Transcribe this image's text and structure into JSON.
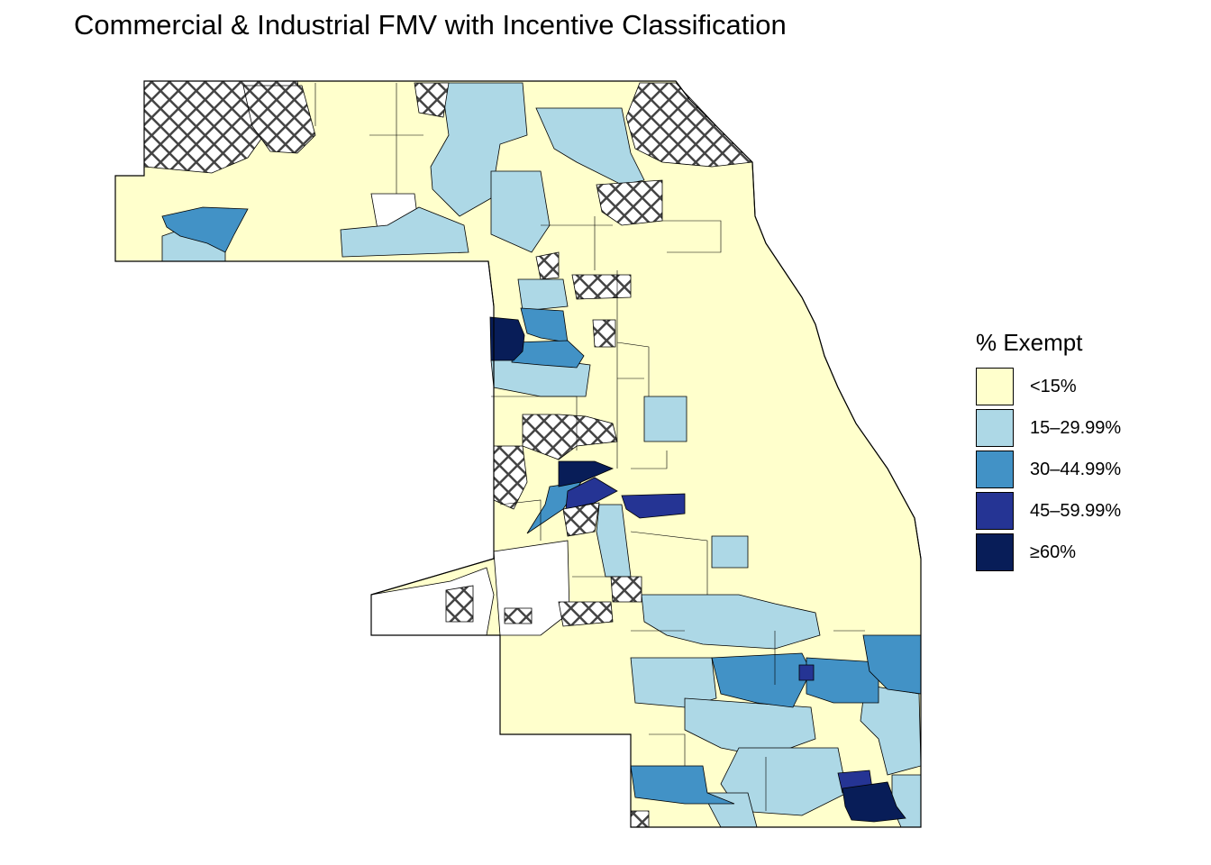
{
  "title": "Commercial & Industrial FMV with Incentive Classification",
  "legend": {
    "title": "% Exempt",
    "items": [
      {
        "label": "<15%",
        "color": "#FFFFCC"
      },
      {
        "label": "15–29.99%",
        "color": "#ADD8E6"
      },
      {
        "label": "30–44.99%",
        "color": "#4292C6"
      },
      {
        "label": "45–59.99%",
        "color": "#253494"
      },
      {
        "label": "≥60%",
        "color": "#081D58"
      }
    ]
  },
  "colors": {
    "outline": "#000000",
    "no_data": "#FFFFFF",
    "hatch": "#444444"
  },
  "icons": {
    "hatch_pattern": "crosshatch-pattern"
  }
}
